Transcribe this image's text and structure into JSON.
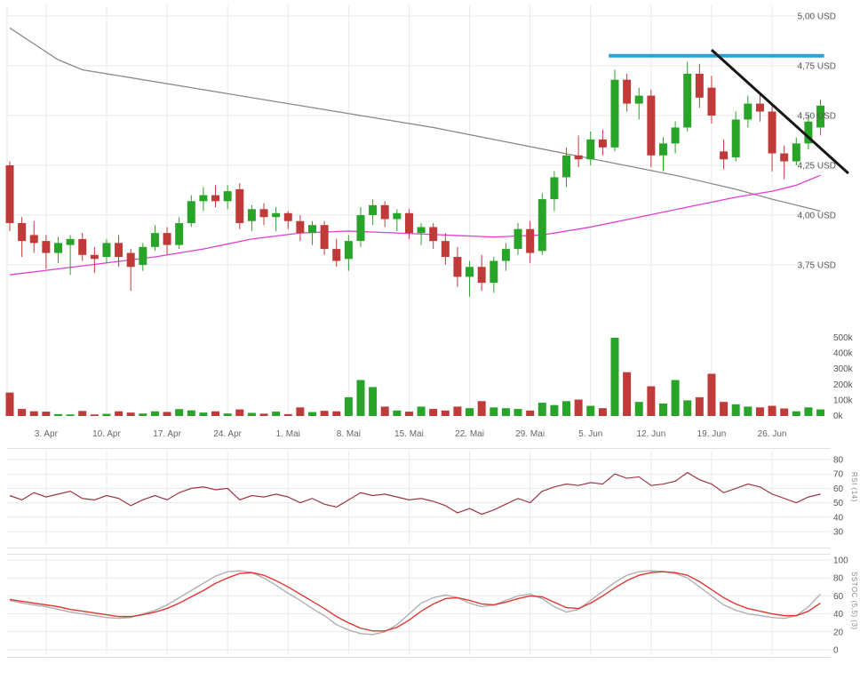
{
  "colors": {
    "up": "#28a428",
    "down": "#c03a3a",
    "grid": "#e9e9e9",
    "axis_text": "#555555",
    "x_axis_text": "#666666"
  },
  "chart_data": {
    "type": "candlestick",
    "x": {
      "dates": [
        "29.3",
        "30.3",
        "31.3",
        "3.4",
        "4.4",
        "5.4",
        "6.4",
        "7.4",
        "10.4",
        "11.4",
        "12.4",
        "13.4",
        "14.4",
        "17.4",
        "18.4",
        "19.4",
        "20.4",
        "21.4",
        "24.4",
        "25.4",
        "26.4",
        "27.4",
        "28.4",
        "1.5",
        "2.5",
        "3.5",
        "4.5",
        "5.5",
        "8.5",
        "9.5",
        "10.5",
        "11.5",
        "12.5",
        "15.5",
        "16.5",
        "17.5",
        "18.5",
        "19.5",
        "22.5",
        "23.5",
        "24.5",
        "25.5",
        "26.5",
        "29.5",
        "30.5",
        "31.5",
        "1.6",
        "2.6",
        "5.6",
        "6.6",
        "7.6",
        "8.6",
        "9.6",
        "12.6",
        "13.6",
        "14.6",
        "15.6",
        "16.6",
        "19.6",
        "20.6",
        "21.6",
        "22.6",
        "23.6",
        "26.6",
        "27.6",
        "28.6",
        "29.6",
        "30.6"
      ],
      "week_ticks": [
        {
          "index": 3,
          "label": "3. Apr"
        },
        {
          "index": 8,
          "label": "10. Apr"
        },
        {
          "index": 13,
          "label": "17. Apr"
        },
        {
          "index": 18,
          "label": "24. Apr"
        },
        {
          "index": 23,
          "label": "1. Mai"
        },
        {
          "index": 28,
          "label": "8. Mai"
        },
        {
          "index": 33,
          "label": "15. Mai"
        },
        {
          "index": 38,
          "label": "22. Mai"
        },
        {
          "index": 43,
          "label": "29. Mai"
        },
        {
          "index": 48,
          "label": "5. Jun"
        },
        {
          "index": 53,
          "label": "12. Jun"
        },
        {
          "index": 58,
          "label": "19. Jun"
        },
        {
          "index": 63,
          "label": "26. Jun"
        }
      ]
    },
    "price_panel": {
      "ylim": [
        3.44,
        5.08
      ],
      "axis_labels": [
        {
          "value": 5.0,
          "label": "5,00 USD"
        },
        {
          "value": 4.75,
          "label": "4,75 USD"
        },
        {
          "value": 4.5,
          "label": "4,50 USD"
        },
        {
          "value": 4.25,
          "label": "4,25 USD"
        },
        {
          "value": 4.0,
          "label": "4,00 USD"
        },
        {
          "value": 3.75,
          "label": "3,75 USD"
        }
      ],
      "ohlc": [
        [
          4.25,
          4.27,
          3.92,
          3.96
        ],
        [
          3.96,
          3.99,
          3.79,
          3.87
        ],
        [
          3.9,
          3.97,
          3.81,
          3.86
        ],
        [
          3.87,
          3.9,
          3.73,
          3.81
        ],
        [
          3.81,
          3.89,
          3.76,
          3.86
        ],
        [
          3.85,
          3.9,
          3.7,
          3.88
        ],
        [
          3.88,
          3.91,
          3.77,
          3.8
        ],
        [
          3.8,
          3.84,
          3.71,
          3.78
        ],
        [
          3.79,
          3.88,
          3.76,
          3.86
        ],
        [
          3.86,
          3.9,
          3.74,
          3.79
        ],
        [
          3.81,
          3.83,
          3.62,
          3.74
        ],
        [
          3.75,
          3.86,
          3.72,
          3.84
        ],
        [
          3.84,
          3.95,
          3.82,
          3.91
        ],
        [
          3.91,
          3.94,
          3.8,
          3.85
        ],
        [
          3.85,
          3.99,
          3.83,
          3.96
        ],
        [
          3.96,
          4.1,
          3.94,
          4.07
        ],
        [
          4.07,
          4.14,
          4.02,
          4.1
        ],
        [
          4.1,
          4.15,
          4.04,
          4.07
        ],
        [
          4.07,
          4.15,
          4.03,
          4.12
        ],
        [
          4.13,
          4.16,
          3.93,
          3.96
        ],
        [
          3.97,
          4.05,
          3.92,
          4.03
        ],
        [
          4.03,
          4.06,
          3.95,
          3.99
        ],
        [
          3.99,
          4.04,
          3.92,
          4.01
        ],
        [
          4.01,
          4.02,
          3.93,
          3.97
        ],
        [
          3.97,
          4.0,
          3.87,
          3.91
        ],
        [
          3.91,
          3.97,
          3.85,
          3.95
        ],
        [
          3.95,
          3.97,
          3.8,
          3.83
        ],
        [
          3.83,
          3.88,
          3.74,
          3.77
        ],
        [
          3.78,
          3.9,
          3.72,
          3.87
        ],
        [
          3.87,
          4.04,
          3.84,
          4.0
        ],
        [
          4.0,
          4.08,
          3.95,
          4.05
        ],
        [
          4.05,
          4.07,
          3.94,
          3.98
        ],
        [
          3.98,
          4.03,
          3.92,
          4.01
        ],
        [
          4.01,
          4.03,
          3.88,
          3.91
        ],
        [
          3.91,
          3.96,
          3.85,
          3.94
        ],
        [
          3.94,
          3.96,
          3.83,
          3.87
        ],
        [
          3.87,
          3.91,
          3.75,
          3.79
        ],
        [
          3.79,
          3.84,
          3.64,
          3.69
        ],
        [
          3.69,
          3.77,
          3.59,
          3.74
        ],
        [
          3.74,
          3.8,
          3.62,
          3.66
        ],
        [
          3.66,
          3.79,
          3.61,
          3.77
        ],
        [
          3.77,
          3.86,
          3.72,
          3.83
        ],
        [
          3.83,
          3.96,
          3.8,
          3.93
        ],
        [
          3.93,
          3.97,
          3.76,
          3.81
        ],
        [
          3.82,
          4.11,
          3.8,
          4.08
        ],
        [
          4.08,
          4.22,
          4.02,
          4.19
        ],
        [
          4.19,
          4.34,
          4.14,
          4.3
        ],
        [
          4.3,
          4.4,
          4.24,
          4.28
        ],
        [
          4.28,
          4.42,
          4.25,
          4.38
        ],
        [
          4.38,
          4.43,
          4.3,
          4.34
        ],
        [
          4.34,
          4.73,
          4.32,
          4.68
        ],
        [
          4.68,
          4.71,
          4.52,
          4.56
        ],
        [
          4.56,
          4.64,
          4.48,
          4.6
        ],
        [
          4.6,
          4.63,
          4.24,
          4.3
        ],
        [
          4.3,
          4.39,
          4.22,
          4.36
        ],
        [
          4.36,
          4.47,
          4.31,
          4.44
        ],
        [
          4.44,
          4.77,
          4.42,
          4.71
        ],
        [
          4.71,
          4.76,
          4.54,
          4.59
        ],
        [
          4.64,
          4.7,
          4.46,
          4.5
        ],
        [
          4.32,
          4.38,
          4.23,
          4.28
        ],
        [
          4.29,
          4.52,
          4.27,
          4.48
        ],
        [
          4.48,
          4.6,
          4.44,
          4.56
        ],
        [
          4.56,
          4.61,
          4.47,
          4.52
        ],
        [
          4.52,
          4.55,
          4.22,
          4.31
        ],
        [
          4.31,
          4.35,
          4.18,
          4.27
        ],
        [
          4.27,
          4.39,
          4.25,
          4.36
        ],
        [
          4.36,
          4.5,
          4.33,
          4.47
        ],
        [
          4.44,
          4.58,
          4.4,
          4.55
        ]
      ],
      "moving_averages": [
        {
          "name": "ma-long-gray",
          "color": "#8a8a8a",
          "points": [
            [
              0,
              4.94
            ],
            [
              2,
              4.86
            ],
            [
              4,
              4.78
            ],
            [
              6,
              4.73
            ],
            [
              10,
              4.69
            ],
            [
              15,
              4.64
            ],
            [
              20,
              4.59
            ],
            [
              25,
              4.54
            ],
            [
              30,
              4.49
            ],
            [
              35,
              4.44
            ],
            [
              40,
              4.38
            ],
            [
              45,
              4.32
            ],
            [
              50,
              4.26
            ],
            [
              55,
              4.2
            ],
            [
              60,
              4.13
            ],
            [
              63,
              4.08
            ],
            [
              65,
              4.05
            ],
            [
              67,
              4.02
            ]
          ]
        },
        {
          "name": "ma-short-magenta",
          "color": "#e23fd0",
          "points": [
            [
              0,
              3.7
            ],
            [
              4,
              3.73
            ],
            [
              8,
              3.76
            ],
            [
              12,
              3.79
            ],
            [
              16,
              3.83
            ],
            [
              20,
              3.88
            ],
            [
              24,
              3.91
            ],
            [
              28,
              3.92
            ],
            [
              32,
              3.91
            ],
            [
              36,
              3.9
            ],
            [
              40,
              3.89
            ],
            [
              44,
              3.9
            ],
            [
              48,
              3.94
            ],
            [
              52,
              3.99
            ],
            [
              56,
              4.04
            ],
            [
              60,
              4.09
            ],
            [
              63,
              4.12
            ],
            [
              65,
              4.15
            ],
            [
              67,
              4.2
            ]
          ]
        }
      ],
      "overlays": {
        "resistance_line": {
          "price": 4.8,
          "from_index": 49.5,
          "to_index": 67.3,
          "color": "#2b9fd8",
          "width": 4
        },
        "trendline": {
          "from_index": 58,
          "from_price": 4.83,
          "to_index": 69.3,
          "to_price": 4.21,
          "color": "#161616",
          "width": 3
        }
      }
    },
    "volume_panel": {
      "unit": "k",
      "ylim": [
        0,
        520
      ],
      "axis_labels": [
        {
          "value": 500,
          "label": "500k"
        },
        {
          "value": 400,
          "label": "400k"
        },
        {
          "value": 300,
          "label": "300k"
        },
        {
          "value": 200,
          "label": "200k"
        },
        {
          "value": 100,
          "label": "100k"
        },
        {
          "value": 0,
          "label": "0k"
        }
      ],
      "values": [
        150,
        45,
        30,
        28,
        12,
        10,
        32,
        10,
        14,
        30,
        22,
        16,
        30,
        26,
        44,
        36,
        22,
        30,
        16,
        42,
        20,
        15,
        28,
        12,
        55,
        25,
        33,
        30,
        120,
        230,
        185,
        60,
        35,
        28,
        60,
        45,
        35,
        60,
        50,
        95,
        55,
        50,
        45,
        35,
        85,
        70,
        95,
        105,
        65,
        50,
        500,
        280,
        90,
        190,
        80,
        230,
        100,
        120,
        270,
        90,
        75,
        60,
        55,
        65,
        48,
        30,
        55,
        42
      ]
    },
    "rsi_panel": {
      "title": "RSI (14)",
      "line_color": "#9c3642",
      "ticks": [
        80,
        70,
        60,
        50,
        40,
        30
      ],
      "ylim": [
        24,
        88
      ],
      "values": [
        55,
        52,
        57,
        54,
        56,
        58,
        53,
        52,
        55,
        53,
        48,
        52,
        55,
        52,
        57,
        60,
        61,
        59,
        60,
        52,
        55,
        54,
        56,
        54,
        50,
        53,
        49,
        47,
        52,
        57,
        55,
        56,
        54,
        52,
        53,
        51,
        48,
        43,
        46,
        42,
        45,
        49,
        53,
        50,
        58,
        61,
        63,
        62,
        64,
        63,
        70,
        67,
        68,
        62,
        63,
        65,
        71,
        66,
        63,
        57,
        60,
        63,
        61,
        56,
        53,
        50,
        54,
        56
      ]
    },
    "stoch_panel": {
      "title": "SSTOC (5,5) (3)",
      "ticks": [
        100,
        80,
        60,
        40,
        20,
        0
      ],
      "ylim": [
        -5,
        105
      ],
      "series": [
        {
          "name": "fast",
          "color": "#b0b0b0",
          "values": [
            55,
            52,
            50,
            48,
            45,
            42,
            40,
            38,
            36,
            35,
            36,
            40,
            44,
            50,
            58,
            66,
            74,
            82,
            87,
            88,
            86,
            80,
            72,
            63,
            55,
            46,
            38,
            28,
            22,
            18,
            17,
            20,
            28,
            40,
            52,
            58,
            61,
            58,
            52,
            48,
            50,
            55,
            60,
            62,
            57,
            48,
            42,
            45,
            55,
            65,
            75,
            83,
            87,
            88,
            87,
            85,
            80,
            70,
            60,
            50,
            44,
            40,
            38,
            36,
            35,
            38,
            48,
            62
          ]
        },
        {
          "name": "slow",
          "color": "#e03636",
          "values": [
            56,
            54,
            52,
            50,
            48,
            45,
            43,
            41,
            39,
            37,
            37,
            39,
            42,
            46,
            52,
            59,
            66,
            74,
            80,
            85,
            86,
            83,
            77,
            70,
            62,
            54,
            46,
            37,
            30,
            24,
            21,
            21,
            25,
            33,
            43,
            51,
            57,
            58,
            55,
            51,
            50,
            53,
            57,
            60,
            59,
            53,
            47,
            46,
            52,
            60,
            69,
            77,
            83,
            86,
            87,
            86,
            83,
            76,
            67,
            58,
            51,
            46,
            43,
            40,
            38,
            38,
            43,
            52
          ]
        }
      ]
    }
  }
}
